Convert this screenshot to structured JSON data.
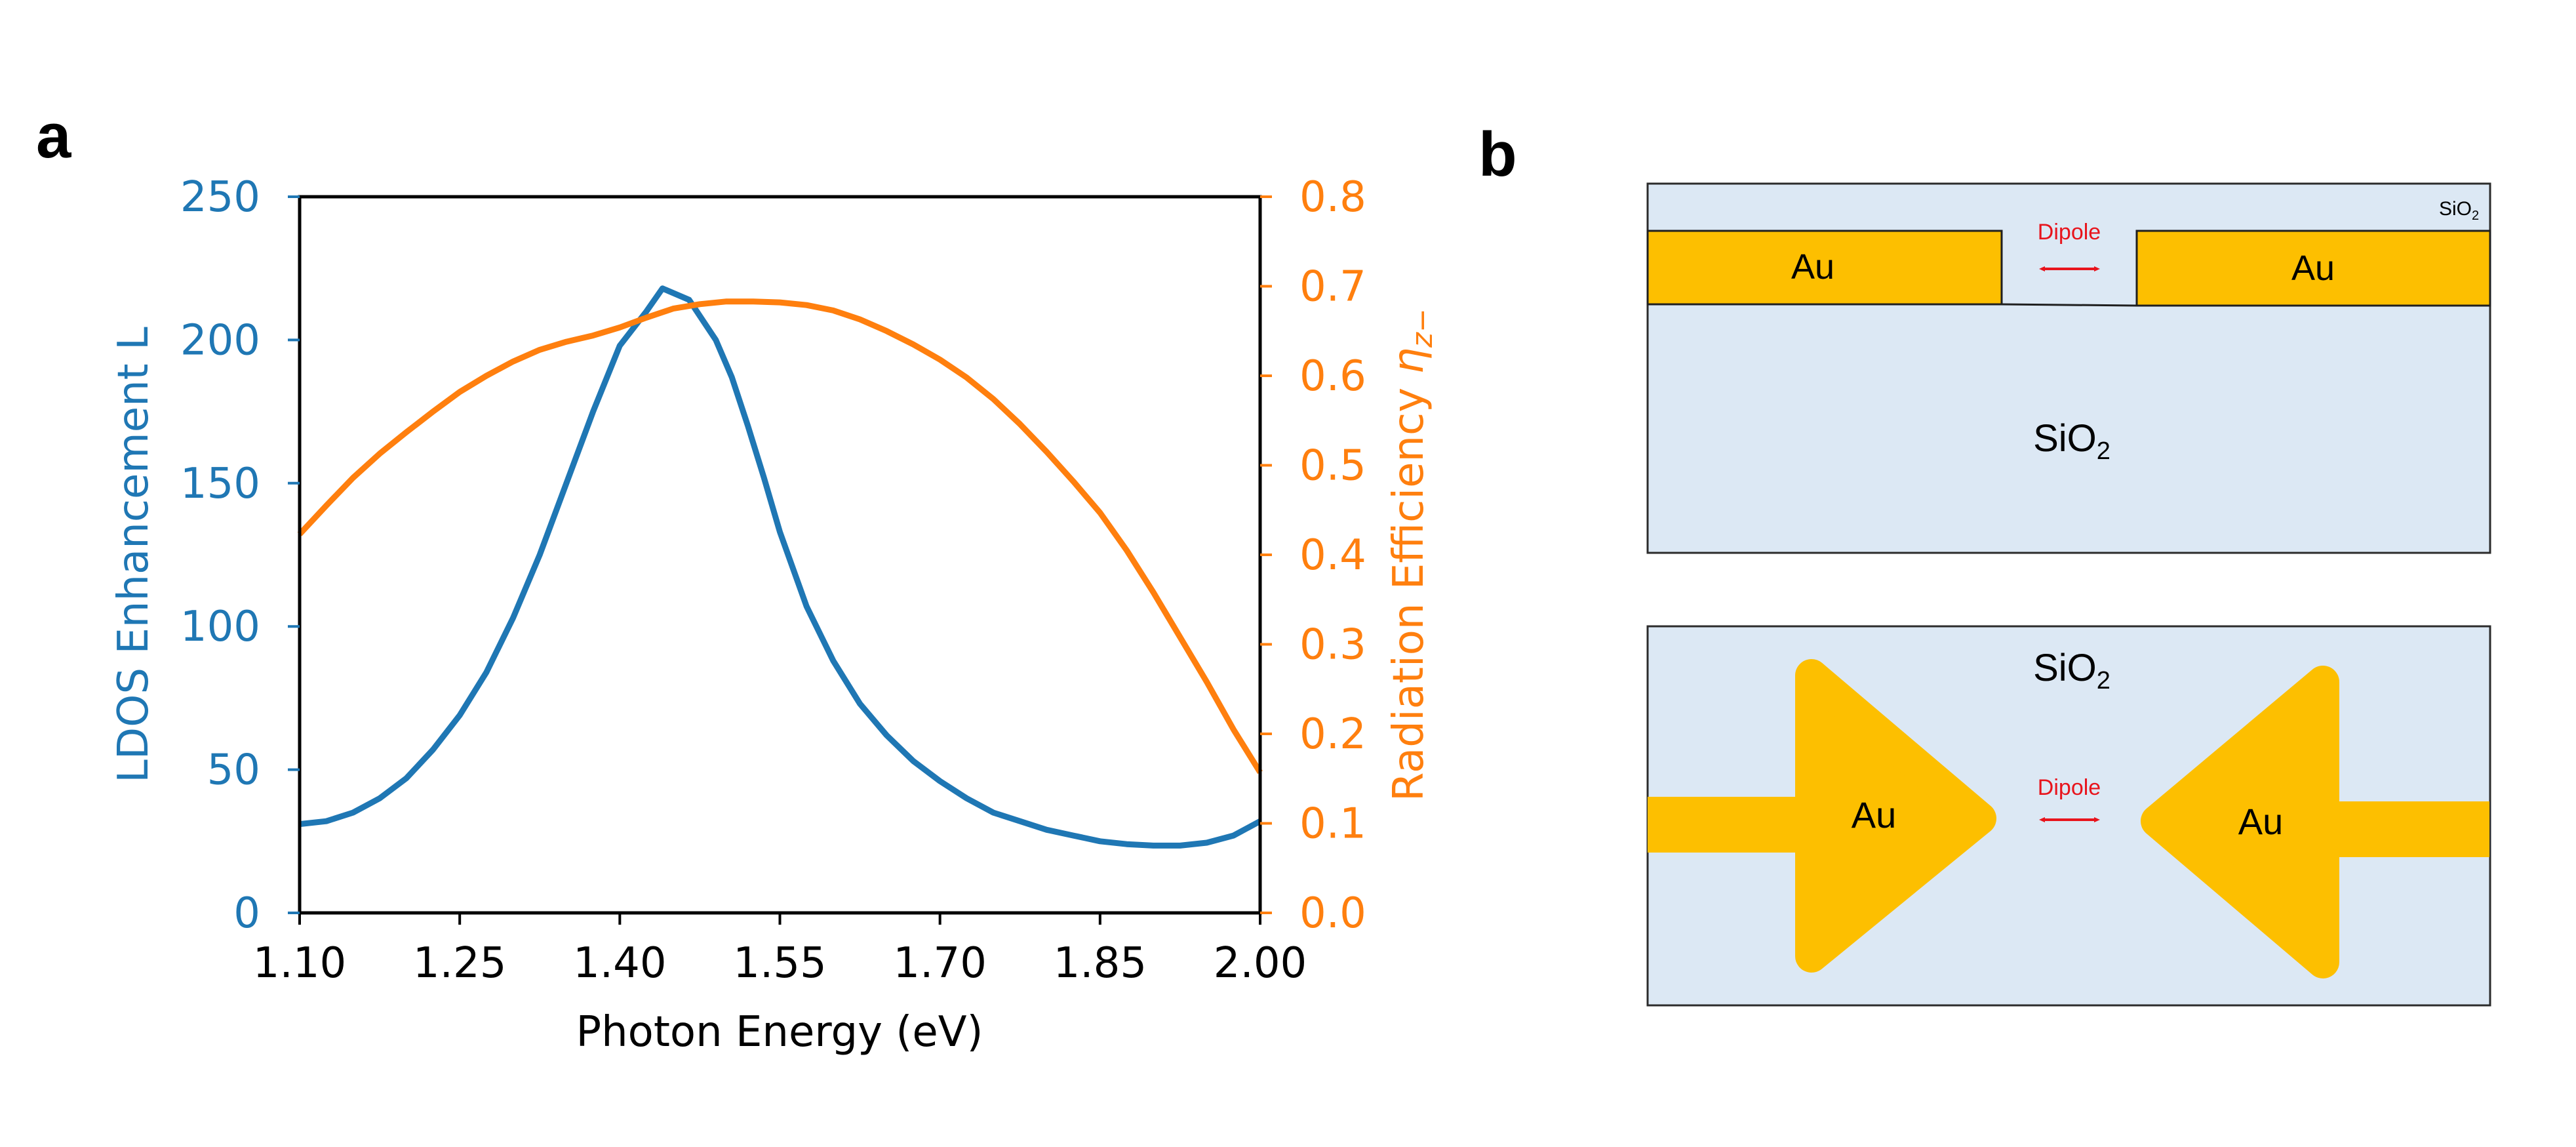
{
  "panels": {
    "a": "a",
    "b": "b"
  },
  "chart_data": {
    "type": "line",
    "title": "",
    "xlabel": "Photon Energy (eV)",
    "ylabel_left": "LDOS Enhancement L",
    "ylabel_right_prefix": "Radiation Efficiency ",
    "ylabel_right_symbol": "η",
    "ylabel_right_sub": "z−",
    "xlim": [
      1.1,
      2.0
    ],
    "ylim_left": [
      0,
      250
    ],
    "ylim_right": [
      0.0,
      0.8
    ],
    "xticks": [
      1.1,
      1.25,
      1.4,
      1.55,
      1.7,
      1.85,
      2.0
    ],
    "xtick_labels": [
      "1.10",
      "1.25",
      "1.40",
      "1.55",
      "1.70",
      "1.85",
      "2.00"
    ],
    "yticks_left": [
      0,
      50,
      100,
      150,
      200,
      250
    ],
    "ytick_labels_left": [
      "0",
      "50",
      "100",
      "150",
      "200",
      "250"
    ],
    "yticks_right": [
      0.0,
      0.1,
      0.2,
      0.3,
      0.4,
      0.5,
      0.6,
      0.7,
      0.8
    ],
    "ytick_labels_right": [
      "0.0",
      "0.1",
      "0.2",
      "0.3",
      "0.4",
      "0.5",
      "0.6",
      "0.7",
      "0.8"
    ],
    "series": [
      {
        "name": "LDOS Enhancement L",
        "axis": "left",
        "color": "#1f77b4",
        "x": [
          1.1,
          1.125,
          1.15,
          1.175,
          1.2,
          1.225,
          1.25,
          1.275,
          1.3,
          1.325,
          1.35,
          1.375,
          1.4,
          1.425,
          1.44,
          1.465,
          1.49,
          1.505,
          1.52,
          1.535,
          1.55,
          1.575,
          1.6,
          1.625,
          1.65,
          1.675,
          1.7,
          1.725,
          1.75,
          1.775,
          1.8,
          1.825,
          1.85,
          1.875,
          1.9,
          1.925,
          1.95,
          1.975,
          2.0
        ],
        "values": [
          31,
          32,
          35,
          40,
          47,
          57,
          69,
          84,
          103,
          125,
          150,
          175,
          198,
          210,
          218,
          214,
          200,
          187,
          170,
          152,
          133,
          107,
          88,
          73,
          62,
          53,
          46,
          40,
          35,
          32,
          29,
          27,
          25,
          24,
          23.5,
          23.5,
          24.5,
          27,
          32
        ]
      },
      {
        "name": "Radiation Efficiency",
        "axis": "right",
        "color": "#ff7f0e",
        "x": [
          1.1,
          1.125,
          1.15,
          1.175,
          1.2,
          1.225,
          1.25,
          1.275,
          1.3,
          1.325,
          1.35,
          1.375,
          1.4,
          1.425,
          1.45,
          1.475,
          1.5,
          1.525,
          1.55,
          1.575,
          1.6,
          1.625,
          1.65,
          1.675,
          1.7,
          1.725,
          1.75,
          1.775,
          1.8,
          1.825,
          1.85,
          1.875,
          1.9,
          1.925,
          1.95,
          1.975,
          2.0
        ],
        "values": [
          0.423,
          0.455,
          0.486,
          0.513,
          0.537,
          0.56,
          0.582,
          0.6,
          0.616,
          0.629,
          0.638,
          0.645,
          0.654,
          0.665,
          0.675,
          0.68,
          0.683,
          0.683,
          0.682,
          0.679,
          0.673,
          0.663,
          0.65,
          0.635,
          0.618,
          0.598,
          0.574,
          0.546,
          0.515,
          0.482,
          0.447,
          0.405,
          0.358,
          0.308,
          0.258,
          0.205,
          0.157
        ]
      }
    ]
  },
  "diagram_top": {
    "medium_label": "SiO",
    "medium_sub": "2",
    "corner_label": "SiO",
    "corner_sub": "2",
    "left_metal": "Au",
    "right_metal": "Au",
    "dipole_label": "Dipole"
  },
  "diagram_bottom": {
    "medium_label": "SiO",
    "medium_sub": "2",
    "left_metal": "Au",
    "right_metal": "Au",
    "dipole_label": "Dipole"
  },
  "colors": {
    "ldos": "#1f77b4",
    "efficiency": "#ff7f0e",
    "gold": "#fdbf00",
    "sio2": "#dce8f4",
    "dipole": "#e8141c"
  }
}
